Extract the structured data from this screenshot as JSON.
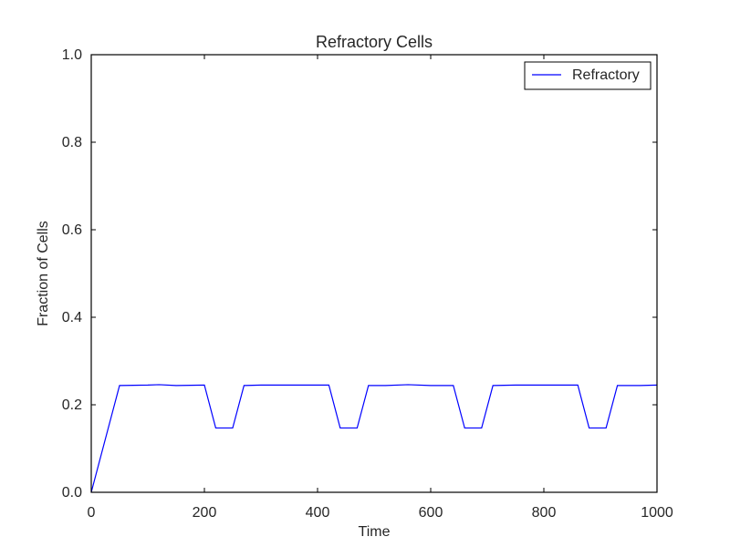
{
  "chart_data": {
    "type": "line",
    "title": "Refractory Cells",
    "xlabel": "Time",
    "ylabel": "Fraction of Cells",
    "xlim": [
      0,
      1000
    ],
    "ylim": [
      0.0,
      1.0
    ],
    "x_ticks": [
      0,
      200,
      400,
      600,
      800,
      1000
    ],
    "x_tick_labels": [
      "0",
      "200",
      "400",
      "600",
      "800",
      "1000"
    ],
    "y_ticks": [
      0.0,
      0.2,
      0.4,
      0.6,
      0.8,
      1.0
    ],
    "y_tick_labels": [
      "0.0",
      "0.2",
      "0.4",
      "0.6",
      "0.8",
      "1.0"
    ],
    "grid": false,
    "legend_position": "top-right",
    "series": [
      {
        "name": "Refractory",
        "color": "#0000ff",
        "x": [
          0,
          50,
          100,
          120,
          150,
          200,
          220,
          250,
          270,
          300,
          350,
          400,
          420,
          440,
          470,
          490,
          520,
          560,
          600,
          640,
          660,
          690,
          710,
          750,
          800,
          860,
          880,
          910,
          930,
          970,
          1000
        ],
        "y": [
          0.0,
          0.244,
          0.245,
          0.246,
          0.244,
          0.245,
          0.147,
          0.147,
          0.244,
          0.245,
          0.245,
          0.245,
          0.245,
          0.147,
          0.147,
          0.244,
          0.244,
          0.246,
          0.244,
          0.244,
          0.147,
          0.147,
          0.244,
          0.245,
          0.245,
          0.245,
          0.147,
          0.147,
          0.244,
          0.244,
          0.245
        ]
      }
    ]
  }
}
